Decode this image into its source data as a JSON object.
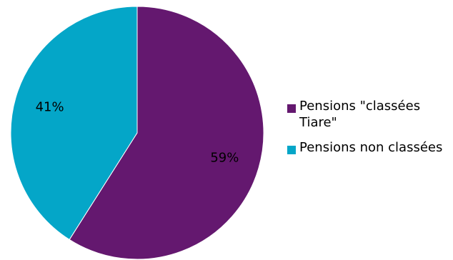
{
  "chart_data": {
    "type": "pie",
    "title": "",
    "slices": [
      {
        "label": "Pensions \"classées Tiare\"",
        "value": 59,
        "display": "59%",
        "color": "#64186F"
      },
      {
        "label": "Pensions non classées",
        "value": 41,
        "display": "41%",
        "color": "#04A6C8"
      }
    ],
    "legend": {
      "position": "right",
      "items": [
        {
          "label": "Pensions \"classées Tiare\"",
          "color": "#64186F"
        },
        {
          "label": "Pensions non classées",
          "color": "#04A6C8"
        }
      ]
    }
  }
}
